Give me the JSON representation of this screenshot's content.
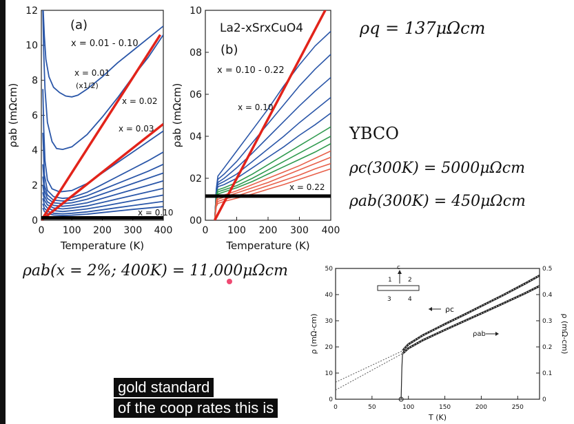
{
  "colors": {
    "blue": "#2a56a8",
    "green": "#2f9a4e",
    "salmon": "#e8604a",
    "red": "#e2231a",
    "black": "#000000"
  },
  "eq_rho_q": "ρq = 137μΩcm",
  "ybco": {
    "title": "YBCO",
    "rho_c": "ρc(300K) = 5000μΩcm",
    "rho_ab": "ρab(300K) = 450μΩcm"
  },
  "eq_bottom": "ρab(x = 2%; 400K) = 11,000μΩcm",
  "caption": {
    "line1": "gold standard",
    "line2": "of the coop rates this is"
  },
  "chart_data": [
    {
      "type": "line",
      "panel_label": "(a)",
      "xlabel": "Temperature (K)",
      "ylabel": "ρab (mΩcm)",
      "xlim": [
        0,
        400
      ],
      "ylim": [
        0,
        12
      ],
      "xticks": [
        "0",
        "100",
        "200",
        "300",
        "400"
      ],
      "yticks": [
        "0",
        "2",
        "4",
        "6",
        "8",
        "10",
        "12"
      ],
      "annotations": [
        "x = 0.01 - 0.10",
        "x = 0.01",
        "(x1/2)",
        "x = 0.02",
        "x = 0.03",
        "x = 0.10"
      ],
      "series": [
        {
          "x": [
            6,
            10,
            15,
            25,
            40,
            60,
            80,
            100,
            120,
            150,
            200,
            250,
            300,
            350,
            400
          ],
          "y": [
            12,
            10.5,
            9.2,
            8.2,
            7.6,
            7.3,
            7.1,
            7.05,
            7.15,
            7.5,
            8.2,
            9.0,
            9.7,
            10.4,
            11.1
          ]
        },
        {
          "x": [
            5,
            8,
            12,
            20,
            35,
            50,
            70,
            100,
            150,
            200,
            250,
            300,
            350,
            400
          ],
          "y": [
            12,
            9.5,
            7.5,
            5.6,
            4.5,
            4.1,
            4.05,
            4.2,
            4.9,
            5.9,
            7.0,
            8.2,
            9.3,
            10.6
          ]
        },
        {
          "x": [
            5,
            8,
            12,
            20,
            35,
            60,
            100,
            150,
            200,
            250,
            300,
            350,
            400
          ],
          "y": [
            7.5,
            5.2,
            3.4,
            2.3,
            1.8,
            1.62,
            1.7,
            2.1,
            2.7,
            3.3,
            3.9,
            4.5,
            5.1
          ]
        },
        {
          "x": [
            5,
            10,
            20,
            40,
            70,
            100,
            150,
            200,
            250,
            300,
            350,
            400
          ],
          "y": [
            5.0,
            2.6,
            1.7,
            1.35,
            1.25,
            1.3,
            1.6,
            2.05,
            2.5,
            2.95,
            3.4,
            3.9
          ]
        },
        {
          "x": [
            5,
            10,
            20,
            40,
            70,
            100,
            150,
            200,
            250,
            300,
            350,
            400
          ],
          "y": [
            3.2,
            2.0,
            1.45,
            1.15,
            1.1,
            1.15,
            1.4,
            1.75,
            2.1,
            2.45,
            2.8,
            3.2
          ]
        },
        {
          "x": [
            5,
            10,
            20,
            40,
            70,
            100,
            150,
            200,
            250,
            300,
            350,
            400
          ],
          "y": [
            2.5,
            1.7,
            1.25,
            1.0,
            0.95,
            1.0,
            1.2,
            1.5,
            1.8,
            2.1,
            2.4,
            2.7
          ]
        },
        {
          "x": [
            5,
            10,
            20,
            40,
            70,
            100,
            150,
            200,
            250,
            300,
            350,
            400
          ],
          "y": [
            2.0,
            1.4,
            1.05,
            0.85,
            0.8,
            0.85,
            1.0,
            1.25,
            1.5,
            1.75,
            2.0,
            2.25
          ]
        },
        {
          "x": [
            5,
            10,
            20,
            40,
            70,
            100,
            150,
            200,
            250,
            300,
            350,
            400
          ],
          "y": [
            1.6,
            1.15,
            0.88,
            0.7,
            0.65,
            0.7,
            0.82,
            1.02,
            1.22,
            1.42,
            1.62,
            1.82
          ]
        },
        {
          "x": [
            5,
            10,
            20,
            40,
            70,
            100,
            150,
            200,
            250,
            300,
            350,
            400
          ],
          "y": [
            1.25,
            0.9,
            0.7,
            0.55,
            0.5,
            0.55,
            0.65,
            0.8,
            0.96,
            1.12,
            1.28,
            1.44
          ]
        },
        {
          "x": [
            5,
            10,
            20,
            40,
            70,
            100,
            150,
            200,
            250,
            300,
            350,
            400
          ],
          "y": [
            0.95,
            0.68,
            0.52,
            0.4,
            0.37,
            0.4,
            0.48,
            0.6,
            0.72,
            0.84,
            0.96,
            1.08
          ]
        },
        {
          "x": [
            5,
            10,
            20,
            40,
            70,
            100,
            150,
            200,
            250,
            300,
            350,
            400
          ],
          "y": [
            0.7,
            0.5,
            0.38,
            0.3,
            0.27,
            0.29,
            0.35,
            0.44,
            0.53,
            0.62,
            0.7,
            0.78
          ]
        }
      ],
      "red_lines": [
        {
          "x": [
            0,
            390
          ],
          "y": [
            0,
            10.6
          ]
        },
        {
          "x": [
            0,
            400
          ],
          "y": [
            0,
            5.5
          ]
        }
      ],
      "black_line_y": 0.137
    },
    {
      "type": "line",
      "panel_label": "(b)",
      "formula": "La2-xSrxCuO4",
      "xlabel": "Temperature (K)",
      "ylabel": "ρab (mΩcm)",
      "xlim": [
        0,
        400
      ],
      "ylim": [
        0,
        10
      ],
      "xticks": [
        "0",
        "100",
        "200",
        "300",
        "400"
      ],
      "yticks": [
        "00",
        "02",
        "04",
        "06",
        "08",
        "10"
      ],
      "annotations": [
        "x = 0.10 - 0.22",
        "x = 0.10",
        "x = 0.22"
      ],
      "series": [
        {
          "color": "blue",
          "x": [
            30,
            35,
            40,
            60,
            100,
            150,
            200,
            250,
            300,
            350,
            400
          ],
          "y": [
            0,
            1.5,
            2.1,
            2.5,
            3.3,
            4.3,
            5.3,
            6.4,
            7.4,
            8.3,
            9.0
          ]
        },
        {
          "color": "blue",
          "x": [
            30,
            35,
            40,
            60,
            100,
            150,
            200,
            250,
            300,
            350,
            400
          ],
          "y": [
            0,
            1.45,
            1.95,
            2.2,
            2.8,
            3.7,
            4.6,
            5.5,
            6.4,
            7.2,
            7.9
          ]
        },
        {
          "color": "blue",
          "x": [
            30,
            35,
            40,
            60,
            100,
            150,
            200,
            250,
            300,
            350,
            400
          ],
          "y": [
            0,
            1.4,
            1.8,
            2.0,
            2.5,
            3.2,
            3.95,
            4.7,
            5.45,
            6.15,
            6.8
          ]
        },
        {
          "color": "blue",
          "x": [
            30,
            35,
            40,
            60,
            100,
            150,
            200,
            250,
            300,
            350,
            400
          ],
          "y": [
            0,
            1.35,
            1.7,
            1.85,
            2.2,
            2.8,
            3.4,
            4.0,
            4.65,
            5.25,
            5.85
          ]
        },
        {
          "color": "blue",
          "x": [
            30,
            35,
            40,
            60,
            100,
            150,
            200,
            250,
            300,
            350,
            400
          ],
          "y": [
            0,
            1.3,
            1.6,
            1.7,
            2.0,
            2.5,
            3.0,
            3.5,
            4.05,
            4.55,
            5.1
          ]
        },
        {
          "color": "green",
          "x": [
            30,
            35,
            40,
            60,
            100,
            150,
            200,
            250,
            300,
            350,
            400
          ],
          "y": [
            0,
            1.2,
            1.45,
            1.55,
            1.8,
            2.2,
            2.65,
            3.1,
            3.55,
            4.0,
            4.45
          ]
        },
        {
          "color": "green",
          "x": [
            30,
            35,
            40,
            60,
            100,
            150,
            200,
            250,
            300,
            350,
            400
          ],
          "y": [
            0,
            1.1,
            1.35,
            1.45,
            1.65,
            2.0,
            2.4,
            2.8,
            3.2,
            3.6,
            4.0
          ]
        },
        {
          "color": "green",
          "x": [
            30,
            35,
            40,
            60,
            100,
            150,
            200,
            250,
            300,
            350,
            400
          ],
          "y": [
            0,
            1.05,
            1.25,
            1.35,
            1.55,
            1.85,
            2.2,
            2.55,
            2.9,
            3.25,
            3.65
          ]
        },
        {
          "color": "salmon",
          "x": [
            30,
            35,
            40,
            60,
            100,
            150,
            200,
            250,
            300,
            350,
            400
          ],
          "y": [
            0,
            0.95,
            1.1,
            1.2,
            1.4,
            1.7,
            2.0,
            2.3,
            2.6,
            2.95,
            3.3
          ]
        },
        {
          "color": "salmon",
          "x": [
            30,
            35,
            40,
            60,
            100,
            150,
            200,
            250,
            300,
            350,
            400
          ],
          "y": [
            0,
            0.85,
            1.0,
            1.1,
            1.3,
            1.55,
            1.8,
            2.1,
            2.4,
            2.7,
            3.0
          ]
        },
        {
          "color": "salmon",
          "x": [
            30,
            35,
            40,
            60,
            100,
            150,
            200,
            250,
            300,
            350,
            400
          ],
          "y": [
            0,
            0.75,
            0.9,
            1.0,
            1.15,
            1.4,
            1.65,
            1.9,
            2.15,
            2.45,
            2.7
          ]
        },
        {
          "color": "salmon",
          "x": [
            30,
            35,
            40,
            60,
            100,
            150,
            200,
            250,
            300,
            350,
            400
          ],
          "y": [
            0,
            0.65,
            0.8,
            0.9,
            1.05,
            1.25,
            1.48,
            1.7,
            1.95,
            2.2,
            2.45
          ]
        }
      ],
      "red_lines": [
        {
          "x": [
            30,
            400
          ],
          "y": [
            0,
            10.5
          ]
        }
      ],
      "black_line_y": 1.15
    },
    {
      "type": "line",
      "xlabel": "T (K)",
      "ylabel": "ρ (mΩ-cm)",
      "ylabel_right": "ρ (mΩ-cm)",
      "xlim": [
        0,
        280
      ],
      "ylim": [
        0,
        50
      ],
      "ylim_right": [
        0,
        0.5
      ],
      "xticks": [
        "0",
        "50",
        "100",
        "150",
        "200",
        "250"
      ],
      "yticks": [
        "0",
        "10",
        "20",
        "30",
        "40",
        "50"
      ],
      "yticks_right": [
        "0",
        "0.1",
        "0.2",
        "0.3",
        "0.4",
        "0.5"
      ],
      "legend": [
        "ρc",
        "ρab"
      ],
      "inset_labels": [
        "c",
        "1",
        "2",
        "3",
        "4"
      ],
      "series": [
        {
          "name": "ρc",
          "x": [
            92,
            95,
            100,
            120,
            150,
            180,
            200,
            230,
            260,
            280
          ],
          "y": [
            18.5,
            19.5,
            21.0,
            24.5,
            28.7,
            32.8,
            35.6,
            39.8,
            44.2,
            47.3
          ]
        },
        {
          "name": "ρab",
          "x": [
            92,
            95,
            100,
            120,
            150,
            180,
            200,
            230,
            260,
            280
          ],
          "y": [
            17.5,
            18.2,
            19.5,
            22.6,
            26.5,
            30.3,
            32.8,
            36.6,
            40.5,
            43.3
          ]
        }
      ],
      "extrapolations": [
        {
          "x": [
            0,
            92
          ],
          "y": [
            6.5,
            18.5
          ]
        },
        {
          "x": [
            0,
            92
          ],
          "y": [
            3.5,
            17.5
          ]
        }
      ],
      "transition": {
        "x": [
          90,
          91,
          92
        ],
        "y": [
          0,
          12,
          18
        ]
      }
    }
  ]
}
